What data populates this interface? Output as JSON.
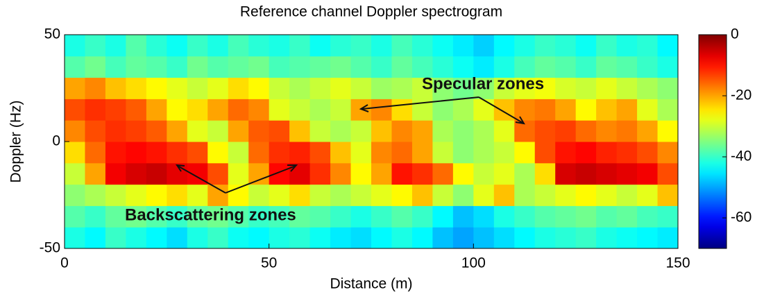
{
  "chart_data": {
    "type": "heatmap",
    "title": "Reference channel Doppler spectrogram",
    "xlabel": "Distance (m)",
    "ylabel": "Doppler (Hz)",
    "x": [
      2.5,
      7.5,
      12.5,
      17.5,
      22.5,
      27.5,
      32.5,
      37.5,
      42.5,
      47.5,
      52.5,
      57.5,
      62.5,
      67.5,
      72.5,
      77.5,
      82.5,
      87.5,
      92.5,
      97.5,
      102.5,
      107.5,
      112.5,
      117.5,
      122.5,
      127.5,
      132.5,
      137.5,
      142.5,
      147.5
    ],
    "y": [
      -45,
      -35,
      -25,
      -15,
      -5,
      5,
      15,
      25,
      35,
      45
    ],
    "values": [
      [
        -42,
        -44,
        -40,
        -42,
        -44,
        -46,
        -42,
        -40,
        -43,
        -44,
        -42,
        -41,
        -43,
        -45,
        -46,
        -44,
        -42,
        -44,
        -48,
        -50,
        -48,
        -46,
        -44,
        -42,
        -41,
        -40,
        -42,
        -43,
        -44,
        -45
      ],
      [
        -38,
        -40,
        -37,
        -36,
        -38,
        -40,
        -37,
        -36,
        -38,
        -40,
        -39,
        -37,
        -38,
        -40,
        -42,
        -40,
        -38,
        -40,
        -44,
        -48,
        -46,
        -42,
        -40,
        -38,
        -37,
        -36,
        -38,
        -37,
        -39,
        -40
      ],
      [
        -34,
        -32,
        -30,
        -28,
        -26,
        -24,
        -28,
        -20,
        -26,
        -30,
        -28,
        -24,
        -30,
        -32,
        -30,
        -28,
        -26,
        -22,
        -30,
        -34,
        -28,
        -22,
        -32,
        -30,
        -28,
        -26,
        -28,
        -30,
        -28,
        -22
      ],
      [
        -30,
        -20,
        -8,
        -6,
        -5,
        -7,
        -8,
        -14,
        -28,
        -20,
        -9,
        -7,
        -12,
        -18,
        -26,
        -20,
        -10,
        -12,
        -16,
        -26,
        -30,
        -28,
        -32,
        -24,
        -6,
        -5,
        -6,
        -7,
        -8,
        -14
      ],
      [
        -24,
        -16,
        -10,
        -9,
        -10,
        -12,
        -14,
        -26,
        -30,
        -16,
        -12,
        -11,
        -14,
        -22,
        -28,
        -18,
        -16,
        -20,
        -30,
        -34,
        -32,
        -30,
        -26,
        -14,
        -10,
        -9,
        -11,
        -12,
        -14,
        -18
      ],
      [
        -18,
        -14,
        -12,
        -13,
        -15,
        -20,
        -28,
        -30,
        -20,
        -15,
        -14,
        -22,
        -30,
        -32,
        -30,
        -22,
        -18,
        -20,
        -32,
        -34,
        -32,
        -28,
        -16,
        -14,
        -13,
        -16,
        -18,
        -17,
        -20,
        -26
      ],
      [
        -14,
        -12,
        -13,
        -15,
        -20,
        -26,
        -24,
        -20,
        -16,
        -18,
        -28,
        -30,
        -32,
        -30,
        -20,
        -18,
        -24,
        -30,
        -34,
        -32,
        -28,
        -22,
        -18,
        -17,
        -20,
        -26,
        -22,
        -20,
        -28,
        -32
      ],
      [
        -20,
        -18,
        -22,
        -24,
        -26,
        -28,
        -30,
        -28,
        -24,
        -26,
        -30,
        -32,
        -30,
        -28,
        -30,
        -33,
        -32,
        -30,
        -34,
        -36,
        -34,
        -30,
        -28,
        -27,
        -29,
        -30,
        -28,
        -30,
        -32,
        -34
      ],
      [
        -38,
        -36,
        -39,
        -37,
        -38,
        -40,
        -36,
        -38,
        -37,
        -36,
        -39,
        -38,
        -37,
        -36,
        -38,
        -40,
        -37,
        -39,
        -41,
        -43,
        -45,
        -42,
        -39,
        -37,
        -38,
        -40,
        -37,
        -38,
        -40,
        -42
      ],
      [
        -42,
        -40,
        -42,
        -38,
        -41,
        -43,
        -40,
        -42,
        -39,
        -41,
        -42,
        -40,
        -43,
        -41,
        -40,
        -42,
        -39,
        -41,
        -43,
        -45,
        -47,
        -44,
        -42,
        -40,
        -41,
        -43,
        -40,
        -42,
        -41,
        -44
      ]
    ],
    "xlim": [
      0,
      150
    ],
    "xticks": [
      0,
      50,
      100,
      150
    ],
    "ylim": [
      -50,
      50
    ],
    "yticks": [
      -50,
      0,
      50
    ],
    "colormap": "jet",
    "clim": [
      -70,
      0
    ],
    "cticks": [
      -60,
      -40,
      -20,
      0
    ],
    "annotations": [
      "Specular zones",
      "Backscattering zones"
    ]
  }
}
